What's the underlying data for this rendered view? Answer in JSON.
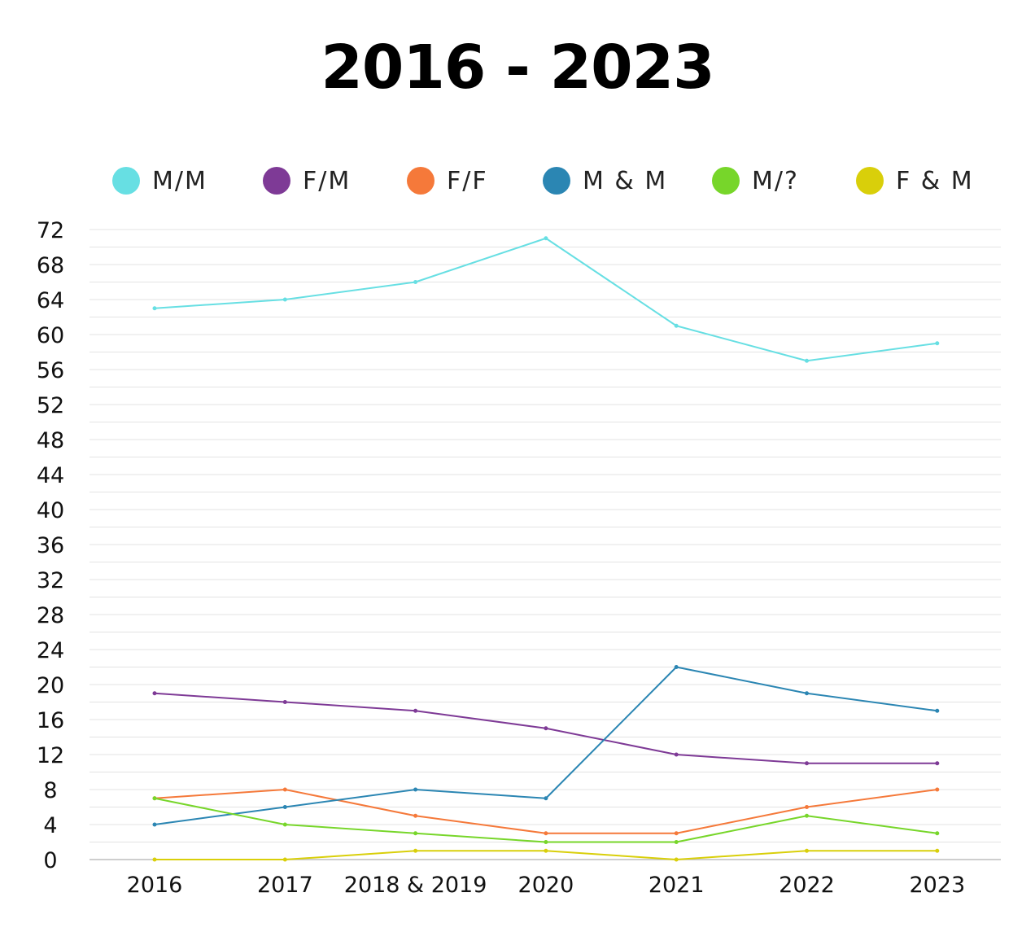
{
  "chart_data": {
    "type": "line",
    "title": "2016 - 2023",
    "categories": [
      "2016",
      "2017",
      "2018 & 2019",
      "2020",
      "2021",
      "2022",
      "2023"
    ],
    "ylim": [
      0,
      72
    ],
    "yticks": [
      0,
      4,
      8,
      12,
      16,
      20,
      24,
      28,
      32,
      36,
      40,
      44,
      48,
      52,
      56,
      60,
      64,
      68,
      72
    ],
    "grid": true,
    "legend_position": "top",
    "series": [
      {
        "name": "M/M",
        "color": "#67dfe3",
        "values": [
          63,
          64,
          66,
          71,
          61,
          57,
          59
        ]
      },
      {
        "name": "F/M",
        "color": "#7e3a96",
        "values": [
          19,
          18,
          17,
          15,
          12,
          11,
          11
        ]
      },
      {
        "name": "F/F",
        "color": "#f5793a",
        "values": [
          7,
          8,
          5,
          3,
          3,
          6,
          8
        ]
      },
      {
        "name": "M & M",
        "color": "#2b86b3",
        "values": [
          4,
          6,
          8,
          7,
          22,
          19,
          17
        ]
      },
      {
        "name": "M/?",
        "color": "#77d62a",
        "values": [
          7,
          4,
          3,
          2,
          2,
          5,
          3
        ]
      },
      {
        "name": "F & M",
        "color": "#d9cf0a",
        "values": [
          0,
          0,
          1,
          1,
          0,
          1,
          1
        ]
      }
    ]
  }
}
